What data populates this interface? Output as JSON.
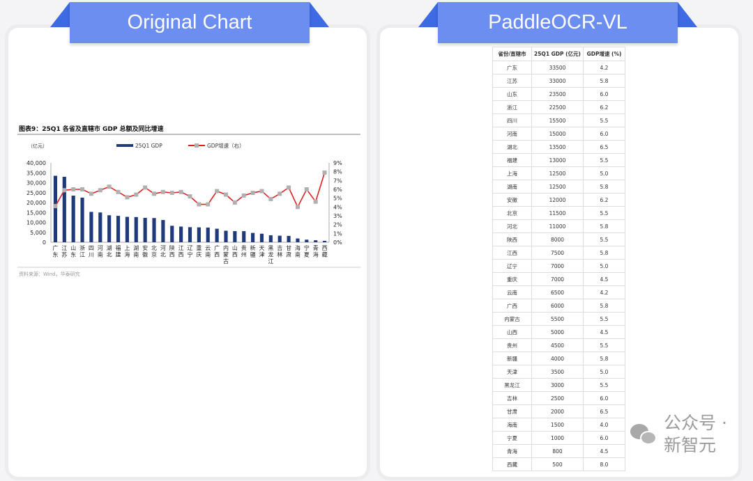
{
  "panels": {
    "left_title": "Original Chart",
    "right_title": "PaddleOCR-VL"
  },
  "watermark": "公众号 · 新智元",
  "chart_data": {
    "type": "bar+line",
    "title": "图表9：25Q1 各省及直辖市 GDP 总额及同比增速",
    "ylabel_left": "（亿元）",
    "source": "资料来源：Wind，华泰研究",
    "ylim_left": [
      0,
      40000
    ],
    "yticks_left": [
      "0",
      "5,000",
      "10,000",
      "15,000",
      "20,000",
      "25,000",
      "30,000",
      "35,000",
      "40,000"
    ],
    "ylim_right": [
      0,
      9
    ],
    "yticks_right": [
      "0%",
      "1%",
      "2%",
      "3%",
      "4%",
      "5%",
      "6%",
      "7%",
      "8%",
      "9%"
    ],
    "legend": "top",
    "grid": false,
    "colors": {
      "bar": "#1f3a7a",
      "line": "#e02020",
      "marker": "#b0b0b0"
    },
    "categories": [
      "广东",
      "江苏",
      "山东",
      "浙江",
      "四川",
      "河南",
      "湖北",
      "福建",
      "上海",
      "湖南",
      "安徽",
      "北京",
      "河北",
      "陕西",
      "江西",
      "辽宁",
      "重庆",
      "云南",
      "广西",
      "内蒙古",
      "山西",
      "贵州",
      "新疆",
      "天津",
      "黑龙江",
      "吉林",
      "甘肃",
      "海南",
      "宁夏",
      "青海",
      "西藏"
    ],
    "series": [
      {
        "name": "25Q1 GDP",
        "type": "bar",
        "axis": "left",
        "values": [
          33500,
          33000,
          23500,
          22500,
          15300,
          15000,
          13600,
          13300,
          12800,
          12700,
          12300,
          12200,
          11200,
          8300,
          7900,
          7600,
          7500,
          7400,
          6800,
          5800,
          5600,
          5600,
          4700,
          4300,
          3500,
          3300,
          3200,
          1900,
          1300,
          1000,
          700
        ]
      },
      {
        "name": "GDP增速（右）",
        "type": "line",
        "axis": "right",
        "values": [
          4.1,
          5.9,
          6.0,
          6.0,
          5.5,
          5.9,
          6.3,
          5.7,
          5.1,
          5.4,
          6.2,
          5.5,
          5.7,
          5.6,
          5.7,
          5.2,
          4.3,
          4.3,
          5.8,
          5.4,
          4.5,
          5.3,
          5.6,
          5.8,
          4.9,
          5.5,
          6.2,
          4.0,
          6.0,
          4.6,
          7.9
        ]
      }
    ]
  },
  "table": {
    "headers": [
      "省份/直辖市",
      "25Q1 GDP (亿元)",
      "GDP增速 (%)"
    ],
    "rows": [
      [
        "广东",
        "33500",
        "4.2"
      ],
      [
        "江苏",
        "33000",
        "5.8"
      ],
      [
        "山东",
        "23500",
        "6.0"
      ],
      [
        "浙江",
        "22500",
        "6.2"
      ],
      [
        "四川",
        "15500",
        "5.5"
      ],
      [
        "河南",
        "15000",
        "6.0"
      ],
      [
        "湖北",
        "13500",
        "6.5"
      ],
      [
        "福建",
        "13000",
        "5.5"
      ],
      [
        "上海",
        "12500",
        "5.0"
      ],
      [
        "湖南",
        "12500",
        "5.8"
      ],
      [
        "安徽",
        "12000",
        "6.2"
      ],
      [
        "北京",
        "11500",
        "5.5"
      ],
      [
        "河北",
        "11000",
        "5.8"
      ],
      [
        "陕西",
        "8000",
        "5.5"
      ],
      [
        "江西",
        "7500",
        "5.8"
      ],
      [
        "辽宁",
        "7000",
        "5.0"
      ],
      [
        "重庆",
        "7000",
        "4.5"
      ],
      [
        "云南",
        "6500",
        "4.2"
      ],
      [
        "广西",
        "6000",
        "5.8"
      ],
      [
        "内蒙古",
        "5500",
        "5.5"
      ],
      [
        "山西",
        "5000",
        "4.5"
      ],
      [
        "贵州",
        "4500",
        "5.5"
      ],
      [
        "新疆",
        "4000",
        "5.8"
      ],
      [
        "天津",
        "3500",
        "5.0"
      ],
      [
        "黑龙江",
        "3000",
        "5.5"
      ],
      [
        "吉林",
        "2500",
        "6.0"
      ],
      [
        "甘肃",
        "2000",
        "6.5"
      ],
      [
        "海南",
        "1500",
        "4.0"
      ],
      [
        "宁夏",
        "1000",
        "6.0"
      ],
      [
        "青海",
        "800",
        "4.5"
      ],
      [
        "西藏",
        "500",
        "8.0"
      ]
    ]
  }
}
